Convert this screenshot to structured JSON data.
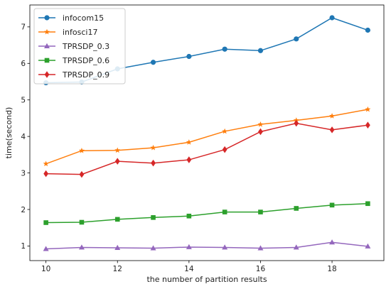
{
  "chart_data": {
    "type": "line",
    "title": "",
    "xlabel": "the number of partition results",
    "ylabel": "time(second)",
    "x": [
      10,
      11,
      12,
      13,
      14,
      15,
      16,
      17,
      18,
      19
    ],
    "xlim": [
      9.55,
      19.45
    ],
    "ylim": [
      0.6,
      7.6
    ],
    "xticks": [
      10,
      12,
      14,
      16,
      18
    ],
    "yticks": [
      1,
      2,
      3,
      4,
      5,
      6,
      7
    ],
    "grid": false,
    "legend_position": "top-left",
    "series": [
      {
        "name": "infocom15",
        "color": "#1f77b4",
        "marker": "circle",
        "values": [
          5.47,
          5.49,
          5.85,
          6.03,
          6.19,
          6.39,
          6.35,
          6.67,
          7.25,
          6.91
        ]
      },
      {
        "name": "infosci17",
        "color": "#ff7f0e",
        "marker": "star",
        "values": [
          3.25,
          3.61,
          3.62,
          3.69,
          3.84,
          4.14,
          4.33,
          4.44,
          4.56,
          4.74
        ]
      },
      {
        "name": "TPRSDP_0.3",
        "color": "#9467bd",
        "marker": "triangle",
        "values": [
          0.92,
          0.96,
          0.95,
          0.94,
          0.97,
          0.96,
          0.94,
          0.96,
          1.1,
          0.99
        ]
      },
      {
        "name": "TPRSDP_0.6",
        "color": "#2ca02c",
        "marker": "square",
        "values": [
          1.64,
          1.65,
          1.73,
          1.78,
          1.82,
          1.93,
          1.93,
          2.03,
          2.12,
          2.16
        ]
      },
      {
        "name": "TPRSDP_0.9",
        "color": "#d62728",
        "marker": "diamond",
        "values": [
          2.98,
          2.96,
          3.32,
          3.27,
          3.36,
          3.64,
          4.13,
          4.36,
          4.18,
          4.31
        ]
      }
    ]
  }
}
